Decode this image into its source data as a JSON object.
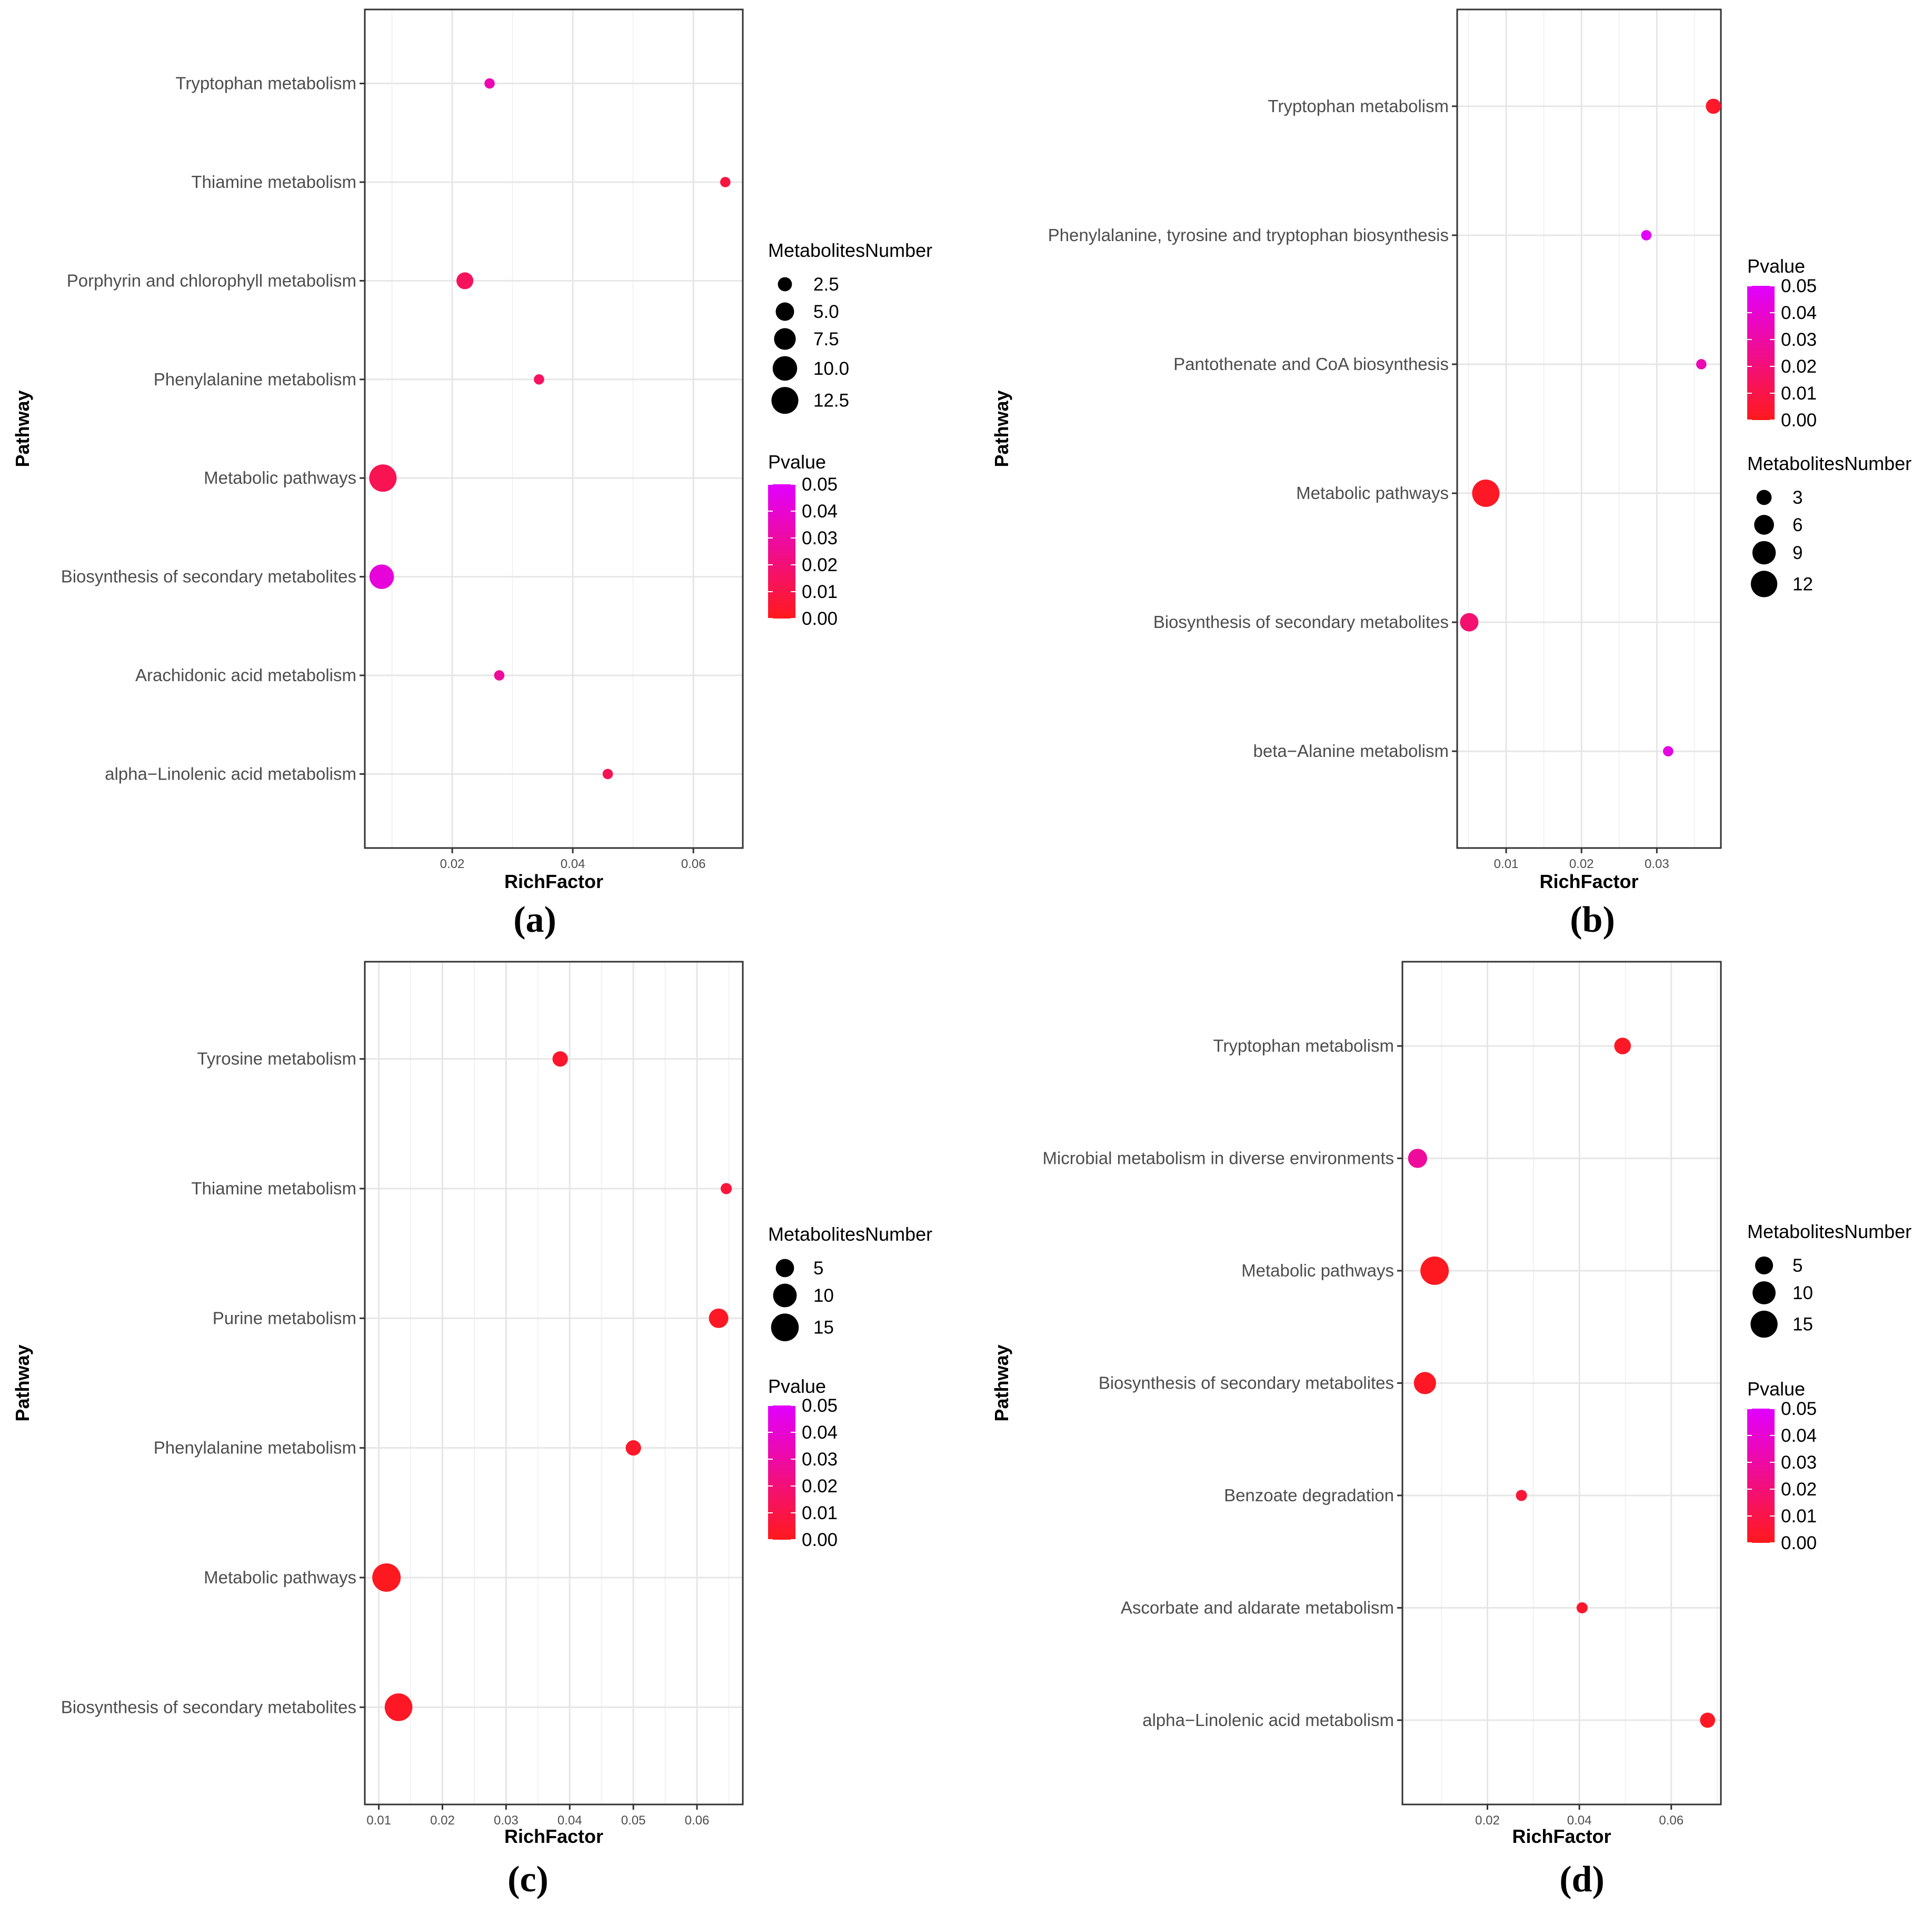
{
  "chart_data": [
    {
      "panel": "(a)",
      "type": "scatter",
      "xlabel": "RichFactor",
      "ylabel": "Pathway",
      "xlim": [
        0.0055,
        0.0682
      ],
      "x_ticks": [
        0.02,
        0.04,
        0.06
      ],
      "x_tick_labels": [
        "0.02",
        "0.04",
        "0.06"
      ],
      "categories": [
        "alpha−Linolenic acid metabolism",
        "Arachidonic acid metabolism",
        "Biosynthesis of secondary metabolites",
        "Metabolic pathways",
        "Phenylalanine metabolism",
        "Porphyrin and chlorophyll metabolism",
        "Thiamine metabolism",
        "Tryptophan metabolism"
      ],
      "points": [
        {
          "pathway": "alpha−Linolenic acid metabolism",
          "richfactor": 0.0458,
          "count": 1,
          "pvalue": 0.012
        },
        {
          "pathway": "Arachidonic acid metabolism",
          "richfactor": 0.0278,
          "count": 1,
          "pvalue": 0.028
        },
        {
          "pathway": "Biosynthesis of secondary metabolites",
          "richfactor": 0.0083,
          "count": 10,
          "pvalue": 0.042
        },
        {
          "pathway": "Metabolic pathways",
          "richfactor": 0.0085,
          "count": 13,
          "pvalue": 0.012
        },
        {
          "pathway": "Phenylalanine metabolism",
          "richfactor": 0.0344,
          "count": 1,
          "pvalue": 0.015
        },
        {
          "pathway": "Porphyrin and chlorophyll metabolism",
          "richfactor": 0.0221,
          "count": 4,
          "pvalue": 0.014
        },
        {
          "pathway": "Thiamine metabolism",
          "richfactor": 0.0653,
          "count": 1,
          "pvalue": 0.008
        },
        {
          "pathway": "Tryptophan metabolism",
          "richfactor": 0.0262,
          "count": 1,
          "pvalue": 0.033
        }
      ],
      "size_legend": {
        "title": "MetabolitesNumber",
        "breaks": [
          2.5,
          5.0,
          7.5,
          10.0,
          12.5
        ],
        "labels": [
          "2.5",
          "5.0",
          "7.5",
          "10.0",
          "12.5"
        ]
      },
      "color_legend": {
        "title": "Pvalue",
        "range": [
          0.0,
          0.05
        ],
        "breaks": [
          0.05,
          0.04,
          0.03,
          0.02,
          0.01,
          0.0
        ],
        "labels": [
          "0.05",
          "0.04",
          "0.03",
          "0.02",
          "0.01",
          "0.00"
        ]
      }
    },
    {
      "panel": "(b)",
      "type": "scatter",
      "xlabel": "RichFactor",
      "ylabel": "Pathway",
      "xlim": [
        0.0035,
        0.0385
      ],
      "x_ticks": [
        0.01,
        0.02,
        0.03
      ],
      "x_tick_labels": [
        "0.01",
        "0.02",
        "0.03"
      ],
      "categories": [
        "beta−Alanine metabolism",
        "Biosynthesis of secondary metabolites",
        "Metabolic pathways",
        "Pantothenate and CoA biosynthesis",
        "Phenylalanine, tyrosine and tryptophan biosynthesis",
        "Tryptophan metabolism"
      ],
      "points": [
        {
          "pathway": "beta−Alanine metabolism",
          "richfactor": 0.0315,
          "count": 1,
          "pvalue": 0.043
        },
        {
          "pathway": "Biosynthesis of secondary metabolites",
          "richfactor": 0.0051,
          "count": 5,
          "pvalue": 0.018
        },
        {
          "pathway": "Metabolic pathways",
          "richfactor": 0.0073,
          "count": 13,
          "pvalue": 0.002
        },
        {
          "pathway": "Pantothenate and CoA biosynthesis",
          "richfactor": 0.0359,
          "count": 1,
          "pvalue": 0.033
        },
        {
          "pathway": "Phenylalanine, tyrosine and tryptophan biosynthesis",
          "richfactor": 0.0286,
          "count": 1,
          "pvalue": 0.049
        },
        {
          "pathway": "Tryptophan metabolism",
          "richfactor": 0.0375,
          "count": 3,
          "pvalue": 0.003
        }
      ],
      "size_legend": {
        "title": "MetabolitesNumber",
        "breaks": [
          3,
          6,
          9,
          12
        ],
        "labels": [
          "3",
          "6",
          "9",
          "12"
        ]
      },
      "color_legend": {
        "title": "Pvalue",
        "range": [
          0.0,
          0.05
        ],
        "breaks": [
          0.05,
          0.04,
          0.03,
          0.02,
          0.01,
          0.0
        ],
        "labels": [
          "0.05",
          "0.04",
          "0.03",
          "0.02",
          "0.01",
          "0.00"
        ]
      }
    },
    {
      "panel": "(c)",
      "type": "scatter",
      "xlabel": "RichFactor",
      "ylabel": "Pathway",
      "xlim": [
        0.0078,
        0.0672
      ],
      "x_ticks": [
        0.01,
        0.02,
        0.03,
        0.04,
        0.05,
        0.06
      ],
      "x_tick_labels": [
        "0.01",
        "0.02",
        "0.03",
        "0.04",
        "0.05",
        "0.06"
      ],
      "categories": [
        "Biosynthesis of secondary metabolites",
        "Metabolic pathways",
        "Phenylalanine metabolism",
        "Purine metabolism",
        "Thiamine metabolism",
        "Tyrosine metabolism"
      ],
      "points": [
        {
          "pathway": "Biosynthesis of secondary metabolites",
          "richfactor": 0.0131,
          "count": 15,
          "pvalue": 0.002
        },
        {
          "pathway": "Metabolic pathways",
          "richfactor": 0.0112,
          "count": 16,
          "pvalue": 0.001
        },
        {
          "pathway": "Phenylalanine metabolism",
          "richfactor": 0.05,
          "count": 3,
          "pvalue": 0.003
        },
        {
          "pathway": "Purine metabolism",
          "richfactor": 0.0634,
          "count": 6,
          "pvalue": 0.002
        },
        {
          "pathway": "Thiamine metabolism",
          "richfactor": 0.0646,
          "count": 1,
          "pvalue": 0.007
        },
        {
          "pathway": "Tyrosine metabolism",
          "richfactor": 0.0385,
          "count": 3,
          "pvalue": 0.004
        }
      ],
      "size_legend": {
        "title": "MetabolitesNumber",
        "breaks": [
          5,
          10,
          15
        ],
        "labels": [
          "5",
          "10",
          "15"
        ]
      },
      "color_legend": {
        "title": "Pvalue",
        "range": [
          0.0,
          0.05
        ],
        "breaks": [
          0.05,
          0.04,
          0.03,
          0.02,
          0.01,
          0.0
        ],
        "labels": [
          "0.05",
          "0.04",
          "0.03",
          "0.02",
          "0.01",
          "0.00"
        ]
      }
    },
    {
      "panel": "(d)",
      "type": "scatter",
      "xlabel": "RichFactor",
      "ylabel": "Pathway",
      "xlim": [
        0.0015,
        0.0708
      ],
      "x_ticks": [
        0.02,
        0.04,
        0.06
      ],
      "x_tick_labels": [
        "0.02",
        "0.04",
        "0.06"
      ],
      "categories": [
        "alpha−Linolenic acid metabolism",
        "Ascorbate and aldarate metabolism",
        "Benzoate degradation",
        "Biosynthesis of secondary metabolites",
        "Metabolic pathways",
        "Microbial metabolism in diverse environments",
        "Tryptophan metabolism"
      ],
      "points": [
        {
          "pathway": "alpha−Linolenic acid metabolism",
          "richfactor": 0.0679,
          "count": 3,
          "pvalue": 0.002
        },
        {
          "pathway": "Ascorbate and aldarate metabolism",
          "richfactor": 0.0406,
          "count": 1,
          "pvalue": 0.004
        },
        {
          "pathway": "Benzoate degradation",
          "richfactor": 0.0274,
          "count": 1,
          "pvalue": 0.006
        },
        {
          "pathway": "Biosynthesis of secondary metabolites",
          "richfactor": 0.0064,
          "count": 9,
          "pvalue": 0.002
        },
        {
          "pathway": "Metabolic pathways",
          "richfactor": 0.0085,
          "count": 17,
          "pvalue": 0.001
        },
        {
          "pathway": "Microbial metabolism in diverse environments",
          "richfactor": 0.0048,
          "count": 6,
          "pvalue": 0.028
        },
        {
          "pathway": "Tryptophan metabolism",
          "richfactor": 0.0494,
          "count": 4,
          "pvalue": 0.002
        }
      ],
      "size_legend": {
        "title": "MetabolitesNumber",
        "breaks": [
          5,
          10,
          15
        ],
        "labels": [
          "5",
          "10",
          "15"
        ]
      },
      "color_legend": {
        "title": "Pvalue",
        "range": [
          0.0,
          0.05
        ],
        "breaks": [
          0.05,
          0.04,
          0.03,
          0.02,
          0.01,
          0.0
        ],
        "labels": [
          "0.05",
          "0.04",
          "0.03",
          "0.02",
          "0.01",
          "0.00"
        ]
      }
    }
  ]
}
